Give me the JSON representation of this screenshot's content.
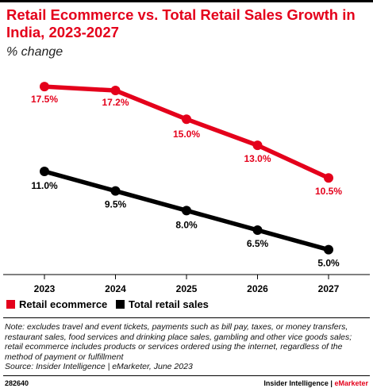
{
  "title": "Retail Ecommerce vs. Total Retail Sales Growth in India, 2023-2027",
  "subtitle": "% change",
  "chart_data": {
    "type": "line",
    "title": "Retail Ecommerce vs. Total Retail Sales Growth in India, 2023-2027",
    "subtitle": "% change",
    "categories": [
      "2023",
      "2024",
      "2025",
      "2026",
      "2027"
    ],
    "series": [
      {
        "name": "Retail ecommerce",
        "values": [
          17.5,
          17.2,
          15.0,
          13.0,
          10.5
        ],
        "labels": [
          "17.5%",
          "17.2%",
          "15.0%",
          "13.0%",
          "10.5%"
        ],
        "color": "#e4001b"
      },
      {
        "name": "Total retail sales",
        "values": [
          11.0,
          9.5,
          8.0,
          6.5,
          5.0
        ],
        "labels": [
          "11.0%",
          "9.5%",
          "8.0%",
          "6.5%",
          "5.0%"
        ],
        "color": "#000000"
      }
    ],
    "ylim": [
      2,
      20
    ],
    "grid": false,
    "legend": "bottom-left",
    "xlabel": "",
    "ylabel": ""
  },
  "legend": [
    {
      "label": "Retail ecommerce",
      "color": "#e4001b"
    },
    {
      "label": "Total retail sales",
      "color": "#000000"
    }
  ],
  "note": "Note: excludes travel and event tickets, payments such as bill pay, taxes, or money transfers, restaurant sales, food services and drinking place sales, gambling and other vice goods sales; retail ecommerce includes products or services ordered using the internet, regardless of the method of payment or fulfillment",
  "source": "Source: Insider Intelligence | eMarketer, June 2023",
  "chart_code": "282640",
  "brand": {
    "name": "Insider Intelligence",
    "separator": "|",
    "accent": "eMarketer"
  }
}
